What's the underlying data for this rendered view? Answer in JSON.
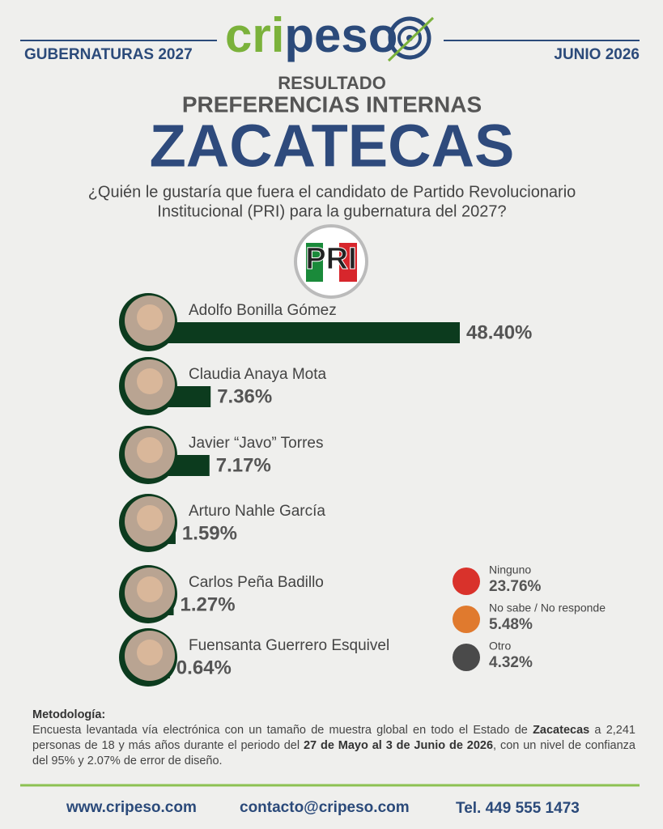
{
  "header": {
    "left": "GUBERNATURAS 2027",
    "right": "JUNIO 2026",
    "logo_parts": [
      "cri",
      "peso"
    ],
    "kicker": "RESULTADO",
    "subtitle": "PREFERENCIAS INTERNAS",
    "title": "ZACATECAS",
    "question_lines": [
      "¿Quién le gustaría que fuera el candidato de Partido Revolucionario",
      "Institucional (PRI) para la gubernatura del 2027?"
    ],
    "party_logo": "PRI"
  },
  "chart_data": {
    "type": "hbar",
    "color": "#0c3b1e",
    "categories": [
      "Adolfo Bonilla Gómez",
      "Claudia Anaya Mota",
      "Javier “Javo” Torres",
      "Arturo Nahle García",
      "Carlos Peña Badillo",
      "Fuensanta Guerrero Esquivel"
    ],
    "values": [
      48.4,
      7.36,
      7.17,
      1.59,
      1.27,
      0.64
    ],
    "value_labels": [
      "48.40%",
      "7.36%",
      "7.17%",
      "1.59%",
      "1.27%",
      "0.64%"
    ]
  },
  "others": [
    {
      "name": "Ninguno",
      "value": 23.76,
      "value_label": "23.76%",
      "color": "#d9322b"
    },
    {
      "name": "No sabe / No responde",
      "value": 5.48,
      "value_label": "5.48%",
      "color": "#e07a2e"
    },
    {
      "name": "Otro",
      "value": 4.32,
      "value_label": "4.32%",
      "color": "#4a4a4a"
    }
  ],
  "methodology": {
    "label": "Metodología:",
    "parts": [
      "Encuesta levantada vía electrónica con un tamaño de muestra global en todo el Estado de ",
      "Zacatecas",
      " a 2,241 personas de 18 y más años durante el periodo del ",
      "27 de Mayo al 3 de Junio de 2026",
      ", con un nivel de confianza del 95% y 2.07% de error de diseño."
    ]
  },
  "footer": {
    "web": "www.cripeso.com",
    "email": "contacto@cripeso.com",
    "phone": "Tel. 449 555 1473"
  }
}
